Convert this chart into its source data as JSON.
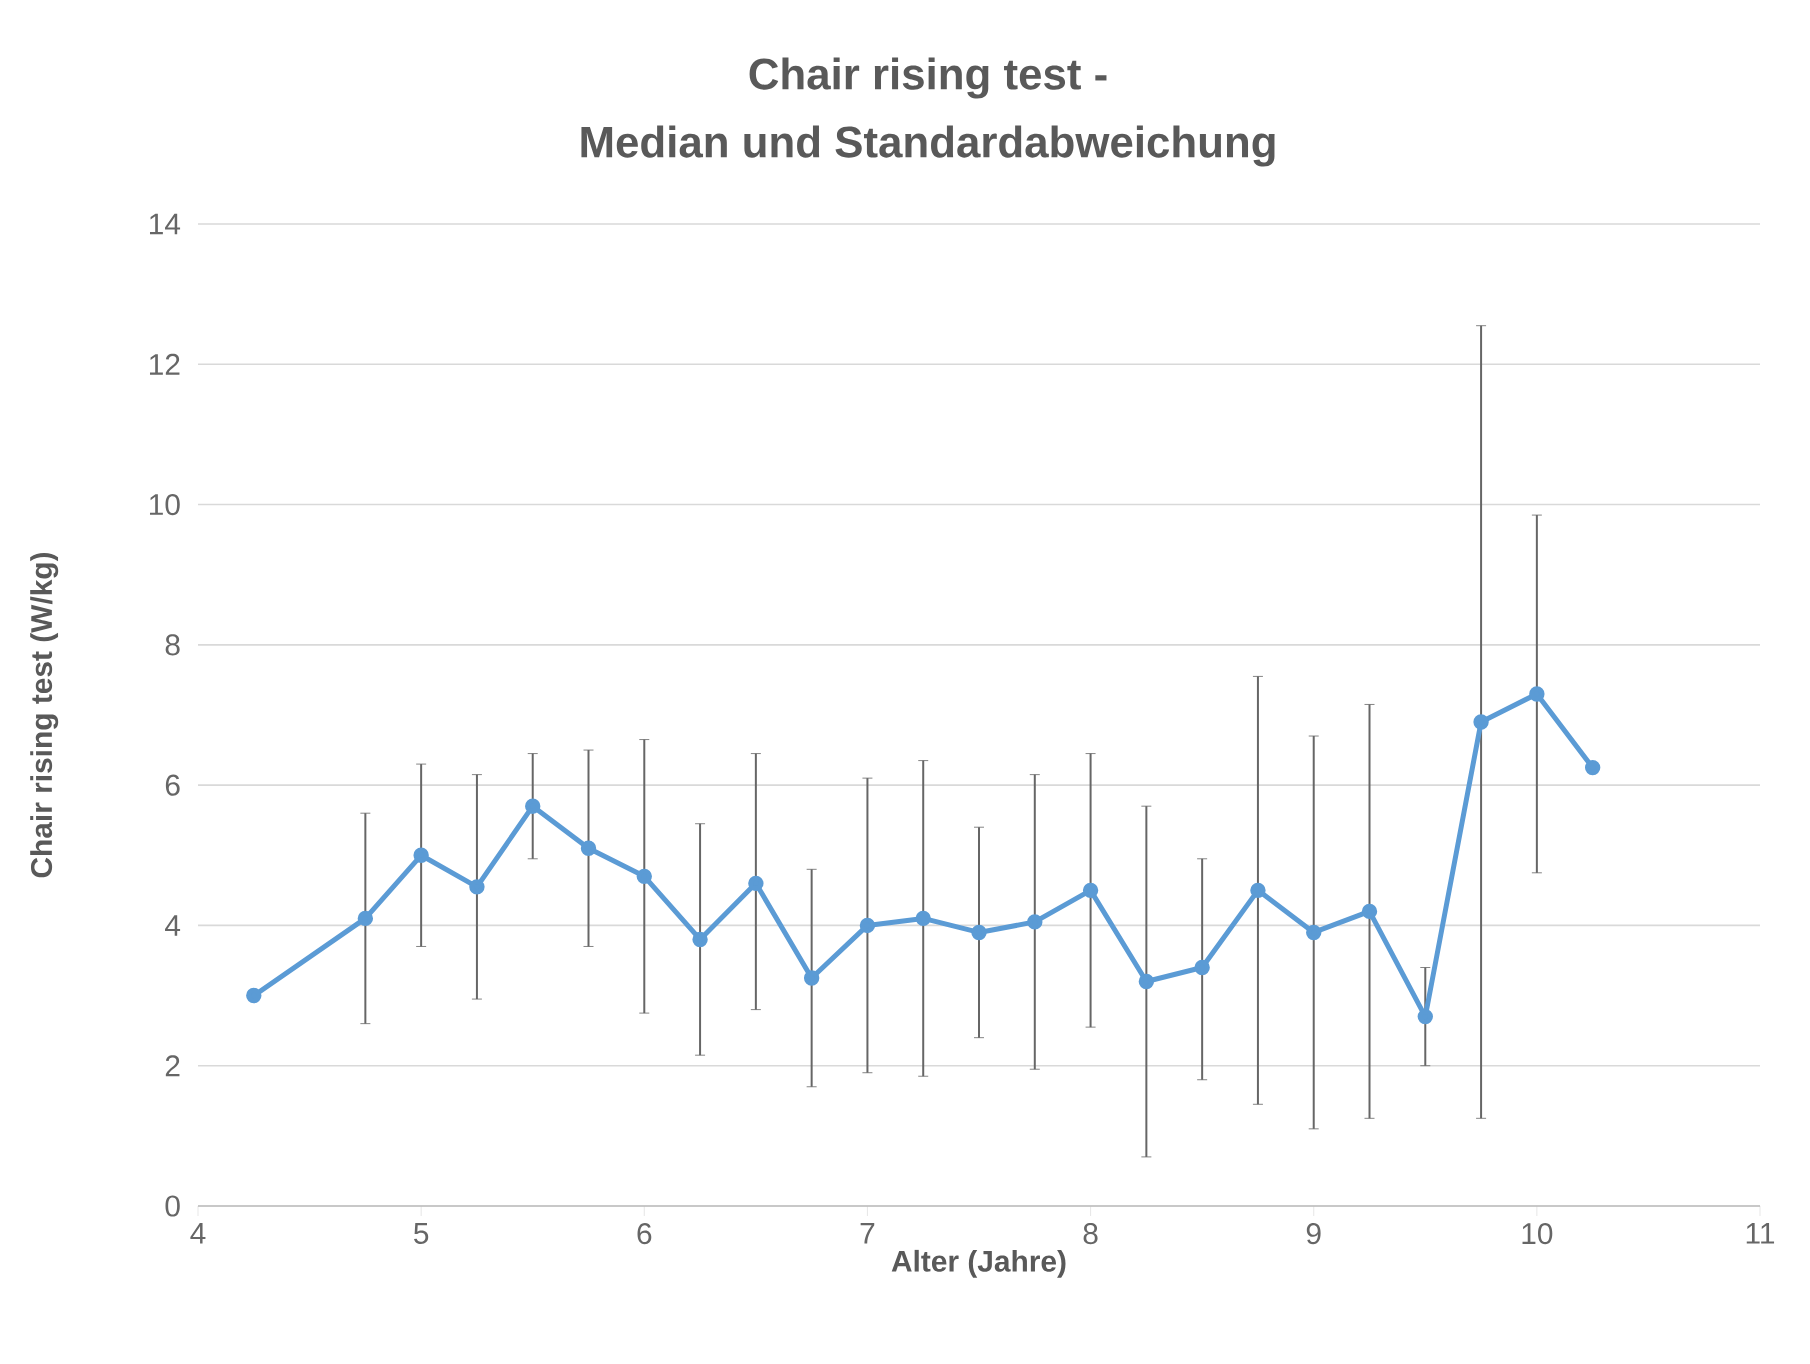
{
  "chart_data": {
    "type": "line",
    "title": "Chair rising test -",
    "subtitle": "Median und Standardabweichung",
    "xlabel": "Alter (Jahre)",
    "ylabel": "Chair rising test (W/kg)",
    "x": [
      4.25,
      4.75,
      5.0,
      5.25,
      5.5,
      5.75,
      6.0,
      6.25,
      6.5,
      6.75,
      7.0,
      7.25,
      7.5,
      7.75,
      8.0,
      8.25,
      8.5,
      8.75,
      9.0,
      9.25,
      9.5,
      9.75,
      10.0,
      10.25
    ],
    "series": [
      {
        "color": "#5b9bd5",
        "values": [
          3.0,
          4.1,
          5.0,
          4.55,
          5.7,
          5.1,
          4.7,
          3.8,
          4.6,
          3.25,
          4.0,
          4.1,
          3.9,
          4.05,
          4.5,
          3.2,
          3.4,
          4.5,
          3.9,
          4.2,
          2.7,
          6.9,
          7.3,
          6.25
        ],
        "errors": [
          null,
          [
            2.6,
            5.6
          ],
          [
            3.7,
            6.3
          ],
          [
            2.95,
            6.15
          ],
          [
            4.95,
            6.45
          ],
          [
            3.7,
            6.5
          ],
          [
            2.75,
            6.65
          ],
          [
            2.15,
            5.45
          ],
          [
            2.8,
            6.45
          ],
          [
            1.7,
            4.8
          ],
          [
            1.9,
            6.1
          ],
          [
            1.85,
            6.35
          ],
          [
            2.4,
            5.4
          ],
          [
            1.95,
            6.15
          ],
          [
            2.55,
            6.45
          ],
          [
            0.7,
            5.7
          ],
          [
            1.8,
            4.95
          ],
          [
            1.45,
            7.55
          ],
          [
            1.1,
            6.7
          ],
          [
            1.25,
            7.15
          ],
          [
            2.0,
            3.4
          ],
          [
            1.25,
            12.55
          ],
          [
            4.75,
            9.85
          ],
          null
        ]
      }
    ],
    "xlim": [
      4,
      11
    ],
    "xticks": [
      4,
      5,
      6,
      7,
      8,
      9,
      10,
      11
    ],
    "ylim": [
      0,
      14
    ],
    "yticks": [
      0,
      2,
      4,
      6,
      8,
      10,
      12,
      14
    ],
    "grid": "y",
    "marker": "circle",
    "line_style": "solid"
  }
}
